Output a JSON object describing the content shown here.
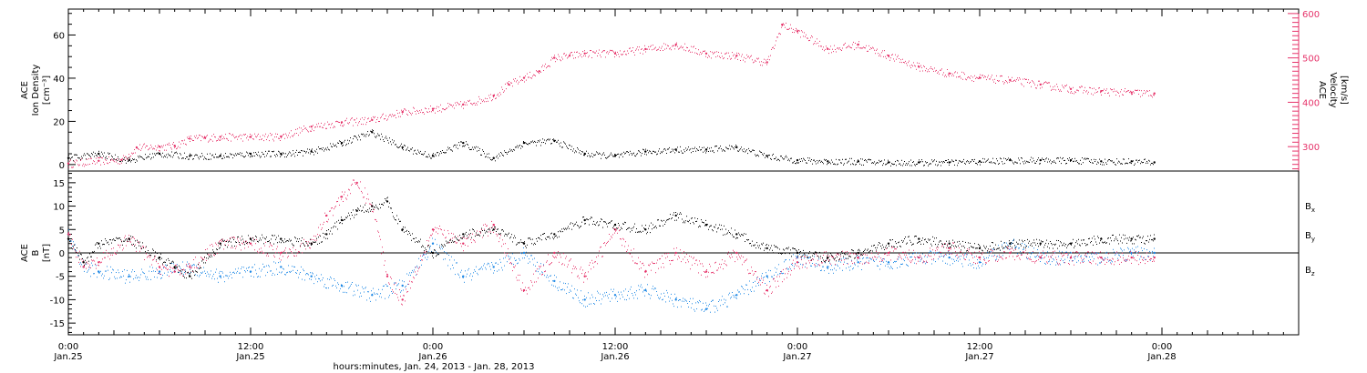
{
  "chart_data": [
    {
      "type": "scatter",
      "panel": "top",
      "ylabel_left": [
        "ACE",
        "Ion Density",
        "[cm⁻³]"
      ],
      "ylabel_right": [
        "ACE",
        "Velocity",
        "[km/s]"
      ],
      "ylim_left": [
        -3,
        72
      ],
      "ylim_right": [
        245,
        610
      ],
      "yticks_left": [
        "0",
        "20",
        "40",
        "60"
      ],
      "yticks_right": [
        "300",
        "400",
        "500",
        "600"
      ],
      "series": [
        {
          "axis": "left",
          "color": "#000000",
          "x_hours": [
            0,
            2,
            4,
            6,
            8,
            10,
            12,
            14,
            16,
            18,
            20,
            22,
            24,
            26,
            28,
            30,
            32,
            34,
            36,
            38,
            40,
            42,
            44,
            46,
            48,
            50,
            52,
            54,
            56,
            58,
            60,
            62,
            64,
            66,
            68,
            70,
            71.5
          ],
          "values": [
            3,
            5,
            2,
            5,
            4,
            4,
            5,
            5,
            6,
            10,
            15,
            8,
            4,
            10,
            3,
            10,
            11,
            5,
            4,
            6,
            7,
            7,
            8,
            4,
            2,
            1.5,
            1.5,
            1,
            1,
            1,
            1.5,
            2,
            2,
            2,
            1.5,
            1.5,
            1
          ]
        },
        {
          "axis": "right",
          "color": "#e6336a",
          "x_hours": [
            0,
            2,
            3.5,
            4.5,
            6,
            7,
            8,
            9,
            10,
            12,
            14,
            16,
            18,
            20,
            22,
            24,
            26,
            28,
            29,
            30,
            31,
            32,
            33,
            34,
            36,
            38,
            40,
            42,
            44,
            46,
            47,
            48,
            50,
            52,
            54,
            56,
            58,
            60,
            62,
            64,
            66,
            68,
            70,
            71.5
          ],
          "values": [
            262,
            268,
            270,
            298,
            300,
            302,
            318,
            320,
            322,
            322,
            323,
            345,
            355,
            360,
            378,
            385,
            395,
            415,
            440,
            455,
            470,
            500,
            505,
            510,
            510,
            520,
            530,
            510,
            505,
            490,
            575,
            560,
            520,
            530,
            505,
            480,
            465,
            455,
            450,
            440,
            430,
            425,
            422,
            420
          ]
        }
      ]
    },
    {
      "type": "scatter",
      "panel": "bottom",
      "ylabel": [
        "ACE",
        "B",
        "[nT]"
      ],
      "ylim": [
        -17.5,
        17.5
      ],
      "yticks": [
        "-15",
        "-10",
        "-5",
        "0",
        "5",
        "10",
        "15"
      ],
      "legend_placement": "right",
      "series": [
        {
          "name": "Bx",
          "legend_base": "B",
          "legend_sub": "x",
          "color": "#000000",
          "x_hours": [
            0,
            1,
            2,
            4,
            6,
            7,
            8,
            10,
            12,
            14,
            16,
            17,
            18,
            19,
            20,
            21,
            22,
            24,
            26,
            28,
            30,
            32,
            34,
            36,
            38,
            40,
            42,
            44,
            46,
            48,
            50,
            52,
            54,
            56,
            58,
            60,
            62,
            64,
            66,
            68,
            70,
            71.5
          ],
          "values": [
            3,
            -2,
            2,
            3,
            -1,
            -3,
            -5,
            2,
            3,
            3,
            2,
            4,
            7,
            9,
            10,
            11,
            5,
            0,
            4,
            5,
            2,
            4,
            7,
            6,
            5,
            8,
            6,
            4,
            1,
            0,
            -1,
            0,
            2,
            3,
            2,
            1,
            2,
            2,
            2,
            3,
            3,
            3
          ]
        },
        {
          "name": "By",
          "legend_base": "B",
          "legend_sub": "y",
          "color": "#1e88e5",
          "x_hours": [
            0,
            1,
            2,
            4,
            6,
            8,
            10,
            12,
            14,
            16,
            18,
            20,
            22,
            24,
            26,
            28,
            30,
            32,
            34,
            36,
            38,
            40,
            42,
            44,
            46,
            48,
            50,
            52,
            54,
            56,
            58,
            60,
            62,
            64,
            66,
            68,
            70,
            71.5
          ],
          "values": [
            4,
            -3,
            -4,
            -5,
            -4,
            -3,
            -5,
            -4,
            -3,
            -5,
            -7,
            -9,
            -7,
            2,
            -5,
            -3,
            0,
            -6,
            -10,
            -9,
            -8,
            -10,
            -12,
            -9,
            -5,
            -1,
            -3,
            -2,
            -2,
            -1,
            -1,
            -2,
            2,
            -1,
            -1,
            -1,
            0,
            0
          ]
        },
        {
          "name": "Bz",
          "legend_base": "B",
          "legend_sub": "z",
          "color": "#e6336a",
          "x_hours": [
            0,
            1,
            2,
            4,
            6,
            7,
            8,
            10,
            12,
            14,
            16,
            17,
            18,
            19,
            20,
            21,
            22,
            24,
            26,
            28,
            30,
            32,
            34,
            36,
            38,
            40,
            42,
            44,
            46,
            48,
            50,
            52,
            54,
            56,
            58,
            60,
            62,
            64,
            66,
            68,
            70,
            71.5
          ],
          "values": [
            4,
            -3,
            -2,
            3,
            -3,
            -4,
            -3,
            2,
            2,
            0,
            2,
            8,
            12,
            15,
            10,
            -5,
            -10,
            5,
            2,
            6,
            -8,
            0,
            -5,
            5,
            -4,
            0,
            -4,
            0,
            -8,
            -2,
            -1,
            -1,
            0,
            -1,
            1,
            -1,
            0,
            -1,
            -1,
            -1,
            -1,
            -1
          ]
        }
      ]
    }
  ],
  "x_axis": {
    "xlim_hours": [
      0,
      81
    ],
    "ticks": [
      {
        "top": "0:00",
        "bottom": "Jan.25"
      },
      {
        "top": "12:00",
        "bottom": "Jan.25"
      },
      {
        "top": "0:00",
        "bottom": "Jan.26"
      },
      {
        "top": "12:00",
        "bottom": "Jan.26"
      },
      {
        "top": "0:00",
        "bottom": "Jan.27"
      },
      {
        "top": "12:00",
        "bottom": "Jan.27"
      },
      {
        "top": "0:00",
        "bottom": "Jan.28"
      }
    ],
    "tick_hours": [
      0,
      12,
      24,
      36,
      48,
      60,
      72
    ],
    "xlabel": "hours:minutes, Jan. 24, 2013 - Jan. 28, 2013"
  },
  "colors": {
    "density": "#000000",
    "velocity": "#e6336a",
    "bx": "#000000",
    "by": "#1e88e5",
    "bz": "#e6336a",
    "axes": "#000000"
  }
}
